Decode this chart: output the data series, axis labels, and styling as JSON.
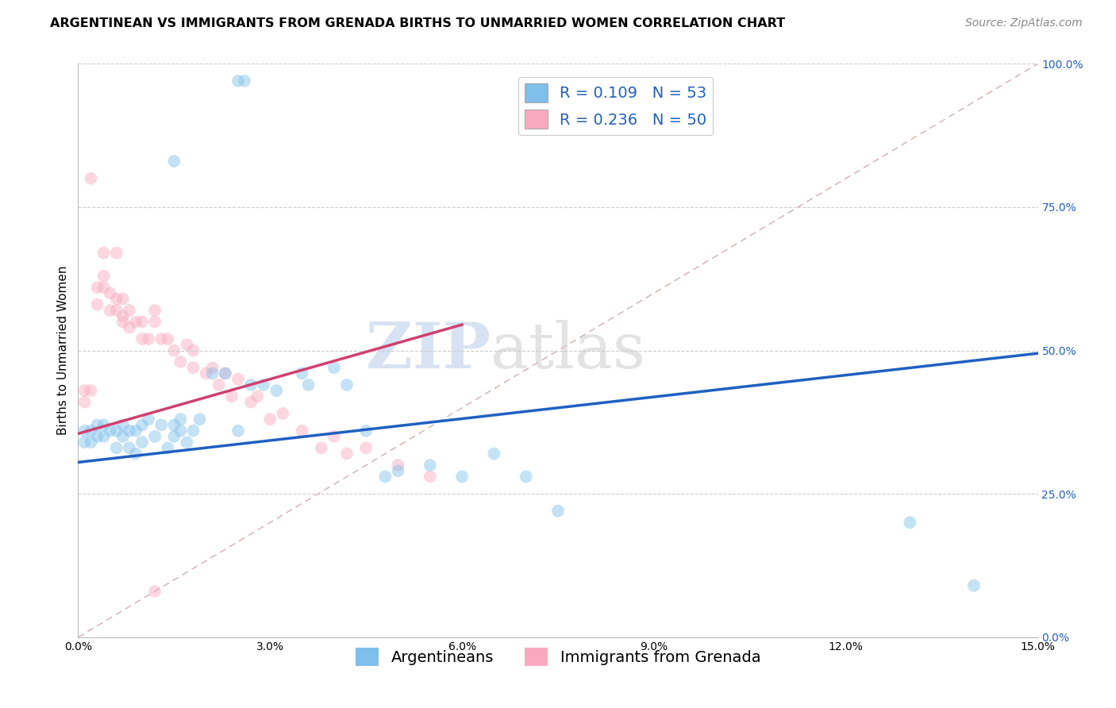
{
  "title": "ARGENTINEAN VS IMMIGRANTS FROM GRENADA BIRTHS TO UNMARRIED WOMEN CORRELATION CHART",
  "source": "Source: ZipAtlas.com",
  "ylabel": "Births to Unmarried Women",
  "legend_label1": "Argentineans",
  "legend_label2": "Immigrants from Grenada",
  "R1": 0.109,
  "N1": 53,
  "R2": 0.236,
  "N2": 50,
  "color_blue": "#7fbfea",
  "color_pink": "#f9a8c0",
  "color_blue_line": "#2060c0",
  "color_pink_line": "#d04070",
  "color_diag": "#d0b0b0",
  "xlim": [
    0.0,
    0.15
  ],
  "ylim": [
    0.0,
    1.0
  ],
  "xticks": [
    0.0,
    0.03,
    0.06,
    0.09,
    0.12,
    0.15
  ],
  "yticks": [
    0.0,
    0.25,
    0.5,
    0.75,
    1.0
  ],
  "blue_x": [
    0.025,
    0.026,
    0.015,
    0.001,
    0.001,
    0.002,
    0.002,
    0.003,
    0.003,
    0.004,
    0.004,
    0.005,
    0.006,
    0.006,
    0.007,
    0.007,
    0.008,
    0.008,
    0.009,
    0.009,
    0.01,
    0.01,
    0.011,
    0.012,
    0.013,
    0.014,
    0.015,
    0.015,
    0.016,
    0.016,
    0.017,
    0.018,
    0.019,
    0.021,
    0.023,
    0.025,
    0.027,
    0.029,
    0.031,
    0.035,
    0.036,
    0.04,
    0.042,
    0.045,
    0.048,
    0.05,
    0.055,
    0.06,
    0.065,
    0.07,
    0.075,
    0.13,
    0.14
  ],
  "blue_y": [
    0.97,
    0.97,
    0.83,
    0.34,
    0.36,
    0.34,
    0.36,
    0.35,
    0.37,
    0.35,
    0.37,
    0.36,
    0.33,
    0.36,
    0.35,
    0.37,
    0.33,
    0.36,
    0.32,
    0.36,
    0.34,
    0.37,
    0.38,
    0.35,
    0.37,
    0.33,
    0.35,
    0.37,
    0.36,
    0.38,
    0.34,
    0.36,
    0.38,
    0.46,
    0.46,
    0.36,
    0.44,
    0.44,
    0.43,
    0.46,
    0.44,
    0.47,
    0.44,
    0.36,
    0.28,
    0.29,
    0.3,
    0.28,
    0.32,
    0.28,
    0.22,
    0.2,
    0.09
  ],
  "pink_x": [
    0.001,
    0.001,
    0.002,
    0.003,
    0.003,
    0.004,
    0.004,
    0.005,
    0.005,
    0.006,
    0.006,
    0.007,
    0.007,
    0.007,
    0.008,
    0.008,
    0.009,
    0.01,
    0.01,
    0.011,
    0.012,
    0.012,
    0.013,
    0.014,
    0.015,
    0.016,
    0.017,
    0.018,
    0.018,
    0.02,
    0.021,
    0.022,
    0.023,
    0.024,
    0.025,
    0.027,
    0.028,
    0.03,
    0.032,
    0.035,
    0.038,
    0.04,
    0.042,
    0.045,
    0.05,
    0.055,
    0.002,
    0.004,
    0.006,
    0.012
  ],
  "pink_y": [
    0.43,
    0.41,
    0.43,
    0.58,
    0.61,
    0.61,
    0.63,
    0.57,
    0.6,
    0.57,
    0.59,
    0.55,
    0.56,
    0.59,
    0.54,
    0.57,
    0.55,
    0.52,
    0.55,
    0.52,
    0.55,
    0.57,
    0.52,
    0.52,
    0.5,
    0.48,
    0.51,
    0.47,
    0.5,
    0.46,
    0.47,
    0.44,
    0.46,
    0.42,
    0.45,
    0.41,
    0.42,
    0.38,
    0.39,
    0.36,
    0.33,
    0.35,
    0.32,
    0.33,
    0.3,
    0.28,
    0.8,
    0.67,
    0.67,
    0.08
  ],
  "watermark_zip": "ZIP",
  "watermark_atlas": "atlas",
  "title_fontsize": 11.5,
  "axis_label_fontsize": 11,
  "tick_fontsize": 10,
  "legend_fontsize": 14,
  "source_fontsize": 10,
  "marker_size": 130,
  "marker_alpha": 0.45,
  "grid_color": "#cccccc",
  "background_color": "#ffffff",
  "blue_trend_x": [
    0.0,
    0.15
  ],
  "blue_trend_y": [
    0.305,
    0.495
  ],
  "pink_trend_x": [
    0.0,
    0.06
  ],
  "pink_trend_y": [
    0.355,
    0.545
  ]
}
